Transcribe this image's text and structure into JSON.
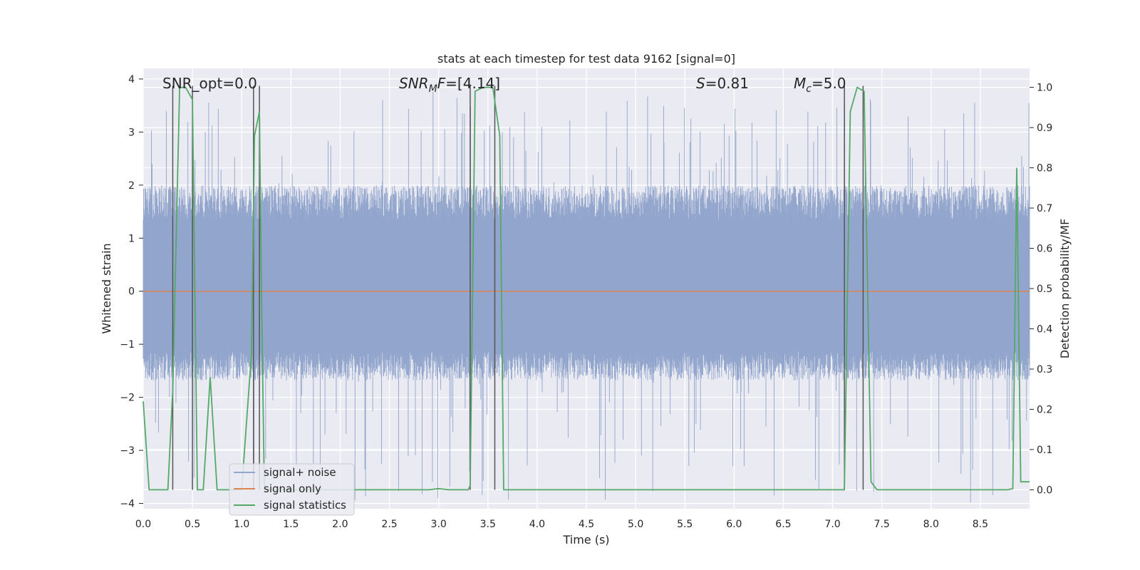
{
  "chart_data": {
    "type": "line",
    "title": "stats at each timestep for test data 9162 [signal=0]",
    "xlabel": "Time (s)",
    "ylabel_left": "Whitened strain",
    "ylabel_right": "Detection probability/MF",
    "xlim": [
      0.0,
      9.0
    ],
    "ylim_left": [
      -4.1,
      4.2
    ],
    "ylim_right": [
      -0.047,
      1.047
    ],
    "x_ticks": [
      "0.0",
      "0.5",
      "1.0",
      "1.5",
      "2.0",
      "2.5",
      "3.0",
      "3.5",
      "4.0",
      "4.5",
      "5.0",
      "5.5",
      "6.0",
      "6.5",
      "7.0",
      "7.5",
      "8.0",
      "8.5"
    ],
    "y_ticks_left": [
      "4",
      "3",
      "2",
      "1",
      "0",
      "−1",
      "−2",
      "−3",
      "−4"
    ],
    "y_ticks_right": [
      "1.0",
      "0.9",
      "0.8",
      "0.7",
      "0.6",
      "0.5",
      "0.4",
      "0.3",
      "0.2",
      "0.1",
      "0.0"
    ],
    "grid": true,
    "legend_position": "lower-left",
    "legend": [
      "signal+ noise",
      "signal only",
      "signal statistics"
    ],
    "annotations": {
      "snr_opt": "SNR_opt=0.0",
      "snr_mf_base": "SNR",
      "snr_mf_sub": "M",
      "snr_mf_mid": "F",
      "snr_mf_value": "=[4.14]",
      "s_base": "S",
      "s_value": "=0.81",
      "mc_base": "M",
      "mc_sub": "c",
      "mc_value": "=5.0"
    },
    "noise_envelope": {
      "typical_range": [
        -1.6,
        1.9
      ],
      "max_spike": 3.8,
      "min_spike": -4.0
    },
    "signal_only": {
      "value": 0.0
    },
    "signal_statistics": {
      "x": [
        0.0,
        0.06,
        0.12,
        0.25,
        0.3,
        0.37,
        0.43,
        0.5,
        0.55,
        0.61,
        0.68,
        0.75,
        0.8,
        1.0,
        1.1,
        1.13,
        1.18,
        1.2,
        1.23,
        1.3,
        1.8,
        2.0,
        2.5,
        2.9,
        3.0,
        3.1,
        3.3,
        3.32,
        3.37,
        3.45,
        3.55,
        3.62,
        3.66,
        3.72,
        7.0,
        7.12,
        7.18,
        7.25,
        7.32,
        7.39,
        7.45,
        8.78,
        8.83,
        8.87,
        8.91,
        9.0
      ],
      "y": [
        0.22,
        0.0,
        0.0,
        0.0,
        0.25,
        1.0,
        1.0,
        0.97,
        0.0,
        0.0,
        0.28,
        0.0,
        0.0,
        0.0,
        0.34,
        0.88,
        0.94,
        0.5,
        0.0,
        0.0,
        0.0,
        0.0,
        0.0,
        0.0,
        0.003,
        0.0,
        0.0,
        0.01,
        0.99,
        1.0,
        1.0,
        0.88,
        0.0,
        0.0,
        0.0,
        0.0,
        0.94,
        1.0,
        0.99,
        0.02,
        0.0,
        0.0,
        0.003,
        0.8,
        0.02,
        0.02
      ]
    },
    "detection_markers": [
      0.3,
      0.5,
      1.12,
      1.18,
      3.32,
      3.57,
      7.12,
      7.31
    ]
  }
}
